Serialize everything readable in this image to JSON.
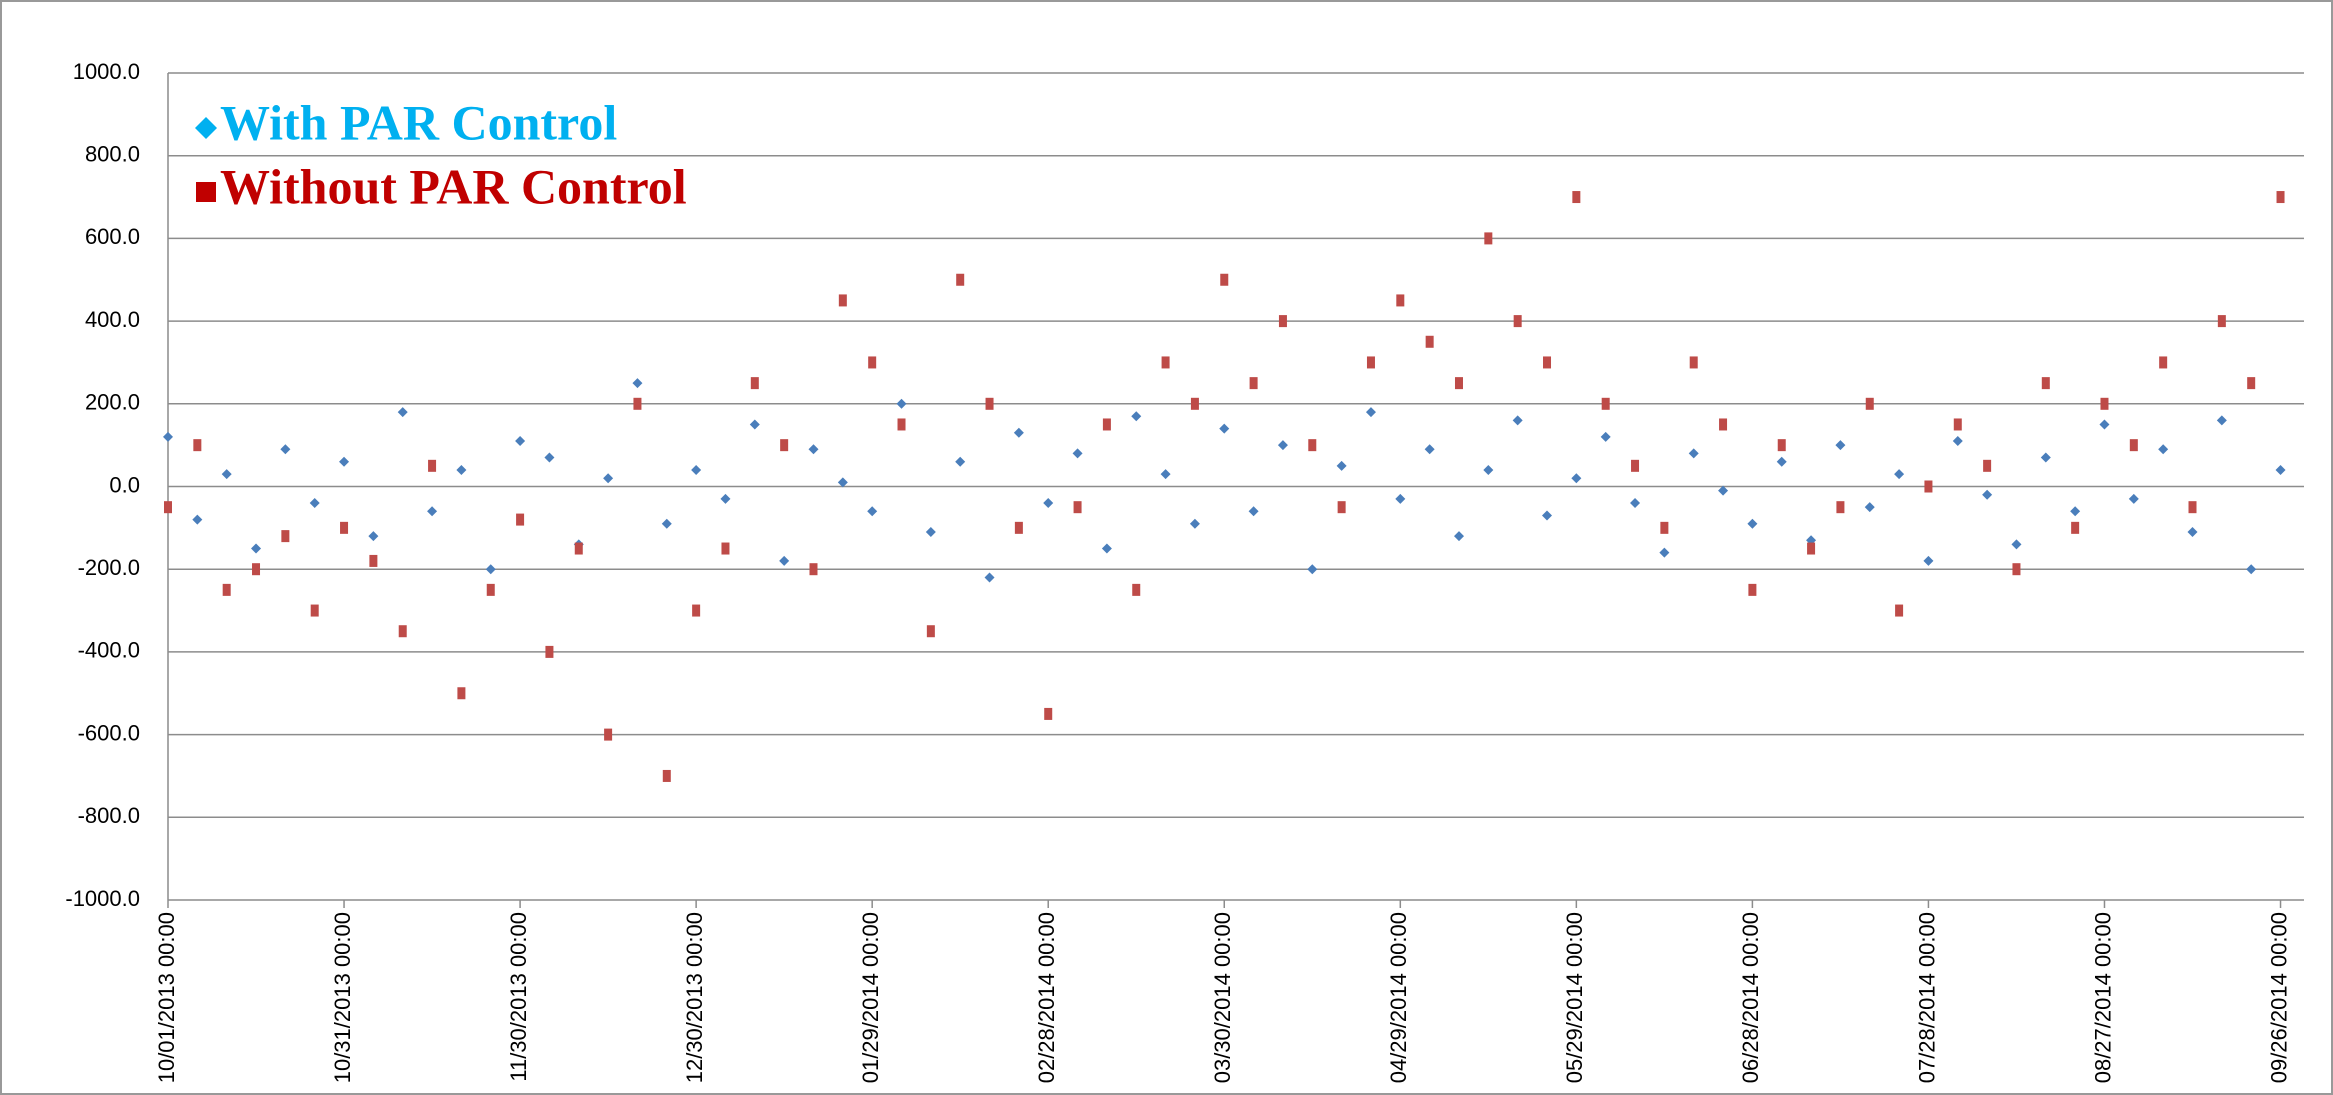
{
  "chart_data": {
    "type": "scatter",
    "x": [
      "10/01/2013 00:00",
      "10/06/2013 00:00",
      "10/11/2013 00:00",
      "10/16/2013 00:00",
      "10/21/2013 00:00",
      "10/26/2013 00:00",
      "10/31/2013 00:00",
      "11/05/2013 00:00",
      "11/10/2013 00:00",
      "11/15/2013 00:00",
      "11/20/2013 00:00",
      "11/25/2013 00:00",
      "11/30/2013 00:00",
      "12/05/2013 00:00",
      "12/10/2013 00:00",
      "12/15/2013 00:00",
      "12/20/2013 00:00",
      "12/25/2013 00:00",
      "12/30/2013 00:00",
      "01/04/2014 00:00",
      "01/09/2014 00:00",
      "01/14/2014 00:00",
      "01/19/2014 00:00",
      "01/24/2014 00:00",
      "01/29/2014 00:00",
      "02/03/2014 00:00",
      "02/08/2014 00:00",
      "02/13/2014 00:00",
      "02/18/2014 00:00",
      "02/23/2014 00:00",
      "02/28/2014 00:00",
      "03/05/2014 00:00",
      "03/10/2014 00:00",
      "03/15/2014 00:00",
      "03/20/2014 00:00",
      "03/25/2014 00:00",
      "03/30/2014 00:00",
      "04/04/2014 00:00",
      "04/09/2014 00:00",
      "04/14/2014 00:00",
      "04/19/2014 00:00",
      "04/24/2014 00:00",
      "04/29/2014 00:00",
      "05/04/2014 00:00",
      "05/09/2014 00:00",
      "05/14/2014 00:00",
      "05/19/2014 00:00",
      "05/24/2014 00:00",
      "05/29/2014 00:00",
      "06/03/2014 00:00",
      "06/08/2014 00:00",
      "06/13/2014 00:00",
      "06/18/2014 00:00",
      "06/23/2014 00:00",
      "06/28/2014 00:00",
      "07/03/2014 00:00",
      "07/08/2014 00:00",
      "07/13/2014 00:00",
      "07/18/2014 00:00",
      "07/23/2014 00:00",
      "07/28/2014 00:00",
      "08/02/2014 00:00",
      "08/07/2014 00:00",
      "08/12/2014 00:00",
      "08/17/2014 00:00",
      "08/22/2014 00:00",
      "08/27/2014 00:00",
      "09/01/2014 00:00",
      "09/06/2014 00:00",
      "09/11/2014 00:00",
      "09/16/2014 00:00",
      "09/21/2014 00:00",
      "09/26/2014 00:00"
    ],
    "series": [
      {
        "name": "With PAR Control",
        "color": "#4a7ebb",
        "legend_color": "#00b0f0",
        "marker": "diamond",
        "values": [
          120,
          -80,
          30,
          -150,
          90,
          -40,
          60,
          -120,
          180,
          -60,
          40,
          -200,
          110,
          70,
          -140,
          20,
          250,
          -90,
          40,
          -30,
          150,
          -180,
          90,
          10,
          -60,
          200,
          -110,
          60,
          -220,
          130,
          -40,
          80,
          -150,
          170,
          30,
          -90,
          140,
          -60,
          100,
          -200,
          50,
          180,
          -30,
          90,
          -120,
          40,
          160,
          -70,
          20,
          120,
          -40,
          -160,
          80,
          -10,
          -90,
          60,
          -130,
          100,
          -50,
          30,
          -180,
          110,
          -20,
          -140,
          70,
          -60,
          150,
          -30,
          90,
          -110,
          160,
          -200,
          40
        ]
      },
      {
        "name": "Without PAR Control",
        "color": "#be4b48",
        "legend_color": "#c00000",
        "marker": "square",
        "values": [
          -50,
          100,
          -250,
          -200,
          -120,
          -300,
          -100,
          -180,
          -350,
          50,
          -500,
          -250,
          -80,
          -400,
          -150,
          -600,
          200,
          -700,
          -300,
          -150,
          250,
          100,
          -200,
          450,
          300,
          150,
          -350,
          500,
          200,
          -100,
          -550,
          -50,
          150,
          -250,
          300,
          200,
          500,
          250,
          400,
          100,
          -50,
          300,
          450,
          350,
          250,
          600,
          400,
          300,
          700,
          200,
          50,
          -100,
          300,
          150,
          -250,
          100,
          -150,
          -50,
          200,
          -300,
          0,
          150,
          50,
          -200,
          250,
          -100,
          200,
          100,
          300,
          -50,
          400,
          250,
          700
        ]
      }
    ],
    "xlim": [
      "10/01/2013 00:00",
      "09/30/2014 00:00"
    ],
    "xticks": [
      "10/01/2013 00:00",
      "10/31/2013 00:00",
      "11/30/2013 00:00",
      "12/30/2013 00:00",
      "01/29/2014 00:00",
      "02/28/2014 00:00",
      "03/30/2014 00:00",
      "04/29/2014 00:00",
      "05/29/2014 00:00",
      "06/28/2014 00:00",
      "07/28/2014 00:00",
      "08/27/2014 00:00",
      "09/26/2014 00:00"
    ],
    "ylim": [
      -1000,
      1000
    ],
    "yticks": [
      {
        "value": 1000,
        "label": "1000.0"
      },
      {
        "value": 800,
        "label": "800.0"
      },
      {
        "value": 600,
        "label": "600.0"
      },
      {
        "value": 400,
        "label": "400.0"
      },
      {
        "value": 200,
        "label": "200.0"
      },
      {
        "value": 0,
        "label": "0.0"
      },
      {
        "value": -200,
        "label": "-200.0"
      },
      {
        "value": -400,
        "label": "-400.0"
      },
      {
        "value": -600,
        "label": "-600.0"
      },
      {
        "value": -800,
        "label": "-800.0"
      },
      {
        "value": -1000,
        "label": "-1000.0"
      }
    ],
    "grid": true
  }
}
